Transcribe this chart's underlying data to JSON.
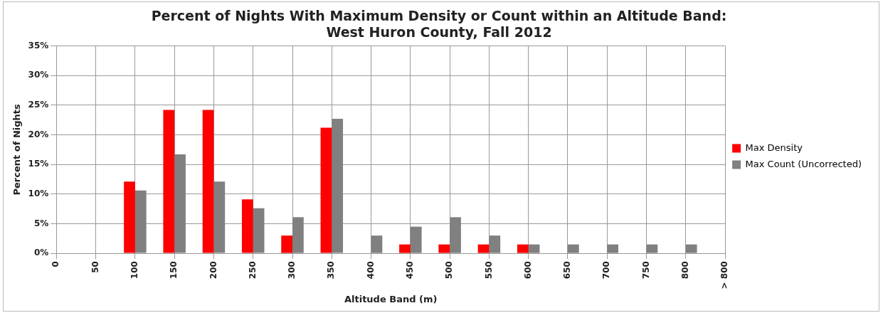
{
  "chart_data": {
    "type": "bar",
    "title": "Percent of Nights With Maximum Density or Count within an Altitude Band:\nWest Huron County, Fall 2012",
    "xlabel": "Altitude Band (m)",
    "ylabel": "Percent of Nights",
    "categories": [
      "0",
      "50",
      "100",
      "150",
      "200",
      "250",
      "300",
      "350",
      "400",
      "450",
      "500",
      "550",
      "600",
      "650",
      "700",
      "750",
      "800",
      "> 800"
    ],
    "series": [
      {
        "name": "Max Density",
        "color": "#ff0000",
        "values": [
          0,
          0,
          12.1,
          24.2,
          24.2,
          9.1,
          3.0,
          21.2,
          0,
          1.5,
          1.5,
          1.5,
          1.5,
          0,
          0,
          0,
          0,
          0
        ]
      },
      {
        "name": "Max Count (Uncorrected)",
        "color": "#808080",
        "values": [
          0,
          0,
          10.6,
          16.7,
          12.1,
          7.6,
          6.1,
          22.7,
          3.0,
          4.5,
          6.1,
          3.0,
          1.5,
          1.5,
          1.5,
          1.5,
          1.5,
          0
        ]
      }
    ],
    "ylim": [
      0,
      35
    ],
    "yticks": [
      {
        "value": 0,
        "label": "0%"
      },
      {
        "value": 5,
        "label": "5%"
      },
      {
        "value": 10,
        "label": "10%"
      },
      {
        "value": 15,
        "label": "15%"
      },
      {
        "value": 20,
        "label": "20%"
      },
      {
        "value": 25,
        "label": "25%"
      },
      {
        "value": 30,
        "label": "30%"
      },
      {
        "value": 35,
        "label": "35%"
      }
    ],
    "grid": true,
    "legend": "right"
  }
}
